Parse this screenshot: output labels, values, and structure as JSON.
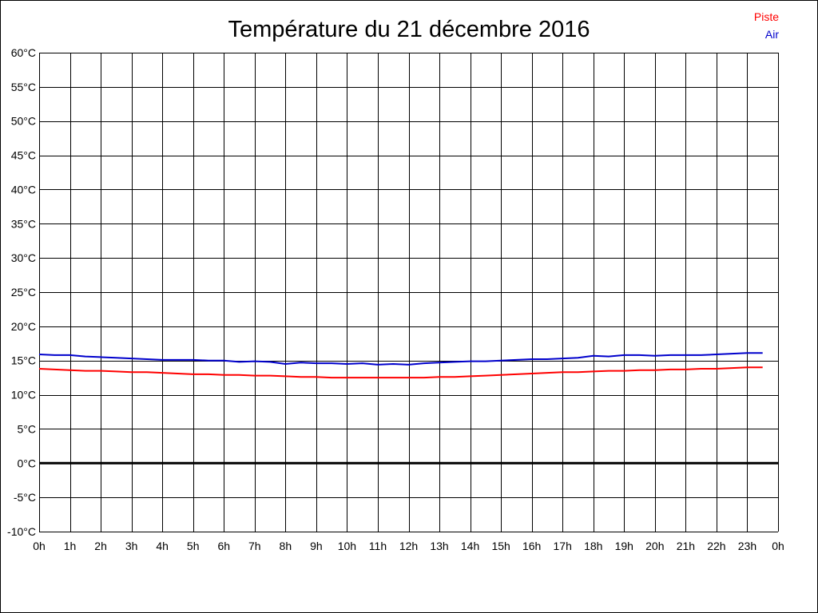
{
  "chart_data": {
    "type": "line",
    "title": "Température du 21 décembre 2016",
    "xlabel": "",
    "ylabel": "",
    "x_ticks": [
      "0h",
      "1h",
      "2h",
      "3h",
      "4h",
      "5h",
      "6h",
      "7h",
      "8h",
      "9h",
      "10h",
      "11h",
      "12h",
      "13h",
      "14h",
      "15h",
      "16h",
      "17h",
      "18h",
      "19h",
      "20h",
      "21h",
      "22h",
      "23h",
      "0h"
    ],
    "y_ticks": [
      "60°C",
      "55°C",
      "50°C",
      "45°C",
      "40°C",
      "35°C",
      "30°C",
      "25°C",
      "20°C",
      "15°C",
      "10°C",
      "5°C",
      "0°C",
      "-5°C",
      "-10°C"
    ],
    "xlim": [
      0,
      24
    ],
    "ylim": [
      -10,
      60
    ],
    "grid": true,
    "legend_position": "top-right",
    "series": [
      {
        "name": "Piste",
        "color": "#ff0000",
        "x": [
          0,
          0.5,
          1,
          1.5,
          2,
          2.5,
          3,
          3.5,
          4,
          4.5,
          5,
          5.5,
          6,
          6.5,
          7,
          7.5,
          8,
          8.5,
          9,
          9.5,
          10,
          10.5,
          11,
          11.5,
          12,
          12.5,
          13,
          13.5,
          14,
          14.5,
          15,
          15.5,
          16,
          16.5,
          17,
          17.5,
          18,
          18.5,
          19,
          19.5,
          20,
          20.5,
          21,
          21.5,
          22,
          22.5,
          23,
          23.5
        ],
        "values": [
          13.8,
          13.7,
          13.6,
          13.5,
          13.5,
          13.4,
          13.3,
          13.3,
          13.2,
          13.1,
          13.0,
          13.0,
          12.9,
          12.9,
          12.8,
          12.8,
          12.7,
          12.6,
          12.6,
          12.5,
          12.5,
          12.5,
          12.5,
          12.5,
          12.5,
          12.5,
          12.6,
          12.6,
          12.7,
          12.8,
          12.9,
          13.0,
          13.1,
          13.2,
          13.3,
          13.3,
          13.4,
          13.5,
          13.5,
          13.6,
          13.6,
          13.7,
          13.7,
          13.8,
          13.8,
          13.9,
          14.0,
          14.0
        ]
      },
      {
        "name": "Air",
        "color": "#0000cc",
        "x": [
          0,
          0.5,
          1,
          1.5,
          2,
          2.5,
          3,
          3.5,
          4,
          4.5,
          5,
          5.5,
          6,
          6.5,
          7,
          7.5,
          8,
          8.5,
          9,
          9.5,
          10,
          10.5,
          11,
          11.5,
          12,
          12.5,
          13,
          13.5,
          14,
          14.5,
          15,
          15.5,
          16,
          16.5,
          17,
          17.5,
          18,
          18.5,
          19,
          19.5,
          20,
          20.5,
          21,
          21.5,
          22,
          22.5,
          23,
          23.5
        ],
        "values": [
          15.9,
          15.8,
          15.8,
          15.6,
          15.5,
          15.4,
          15.3,
          15.2,
          15.1,
          15.1,
          15.1,
          15.0,
          15.0,
          14.8,
          14.9,
          14.8,
          14.5,
          14.7,
          14.6,
          14.6,
          14.5,
          14.6,
          14.4,
          14.5,
          14.4,
          14.6,
          14.7,
          14.8,
          14.9,
          14.9,
          15.0,
          15.1,
          15.2,
          15.2,
          15.3,
          15.4,
          15.7,
          15.6,
          15.8,
          15.8,
          15.7,
          15.8,
          15.8,
          15.8,
          15.9,
          16.0,
          16.1,
          16.1
        ]
      }
    ]
  }
}
